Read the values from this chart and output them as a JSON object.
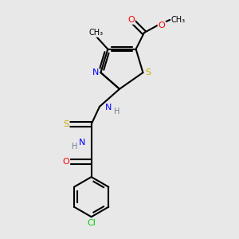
{
  "background_color": "#e8e8e8",
  "atom_colors": {
    "C": "#000000",
    "H": "#708090",
    "N": "#0000ff",
    "O": "#ff0000",
    "S": "#ccaa00",
    "Cl": "#00cc00"
  },
  "fig_size": [
    3.0,
    3.0
  ],
  "dpi": 100
}
